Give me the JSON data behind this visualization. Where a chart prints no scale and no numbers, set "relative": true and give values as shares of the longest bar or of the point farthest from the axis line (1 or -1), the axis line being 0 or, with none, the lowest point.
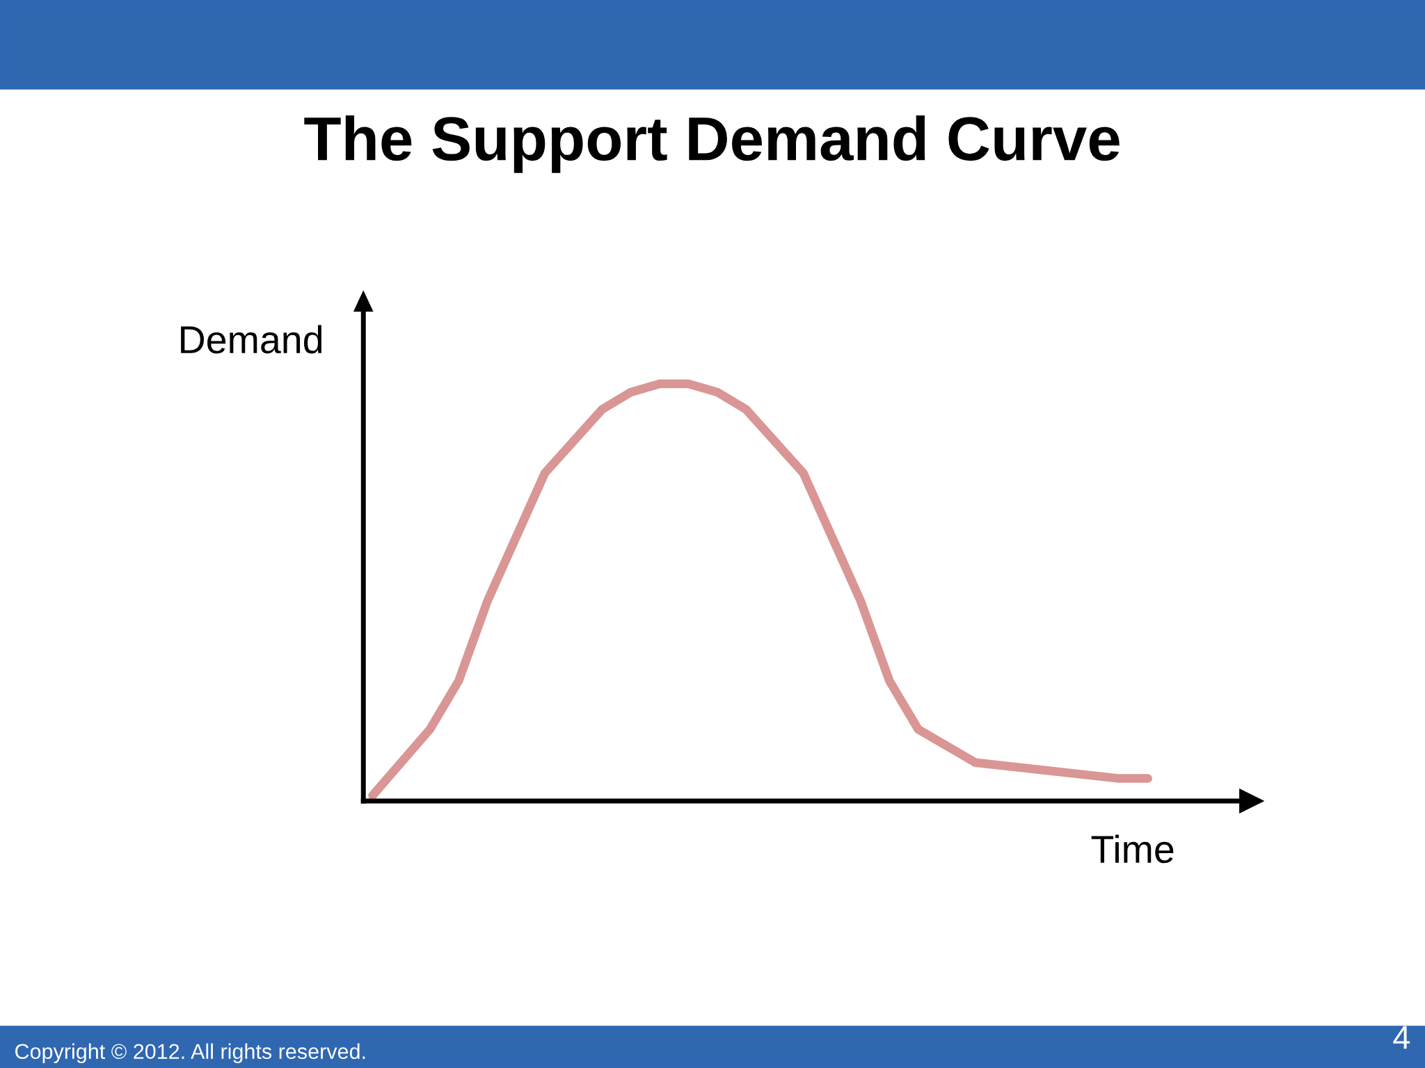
{
  "chart_data": {
    "type": "line",
    "title": "The Support Demand Curve",
    "xlabel": "Time",
    "ylabel": "Demand",
    "relative": true,
    "categories": [
      null,
      null,
      null,
      null,
      null,
      null,
      null,
      null,
      null,
      null,
      null,
      null,
      null,
      null,
      null,
      null,
      null,
      null,
      null,
      null,
      null,
      null,
      null,
      null,
      null,
      null,
      null,
      null
    ],
    "series": [
      {
        "color": "#d99694",
        "values": [
          0.013,
          null,
          0.172,
          0.288,
          0.479,
          null,
          0.786,
          null,
          0.939,
          0.98,
          1,
          1,
          0.98,
          0.939,
          null,
          0.786,
          null,
          0.479,
          0.288,
          0.172,
          null,
          0.092,
          null,
          null,
          null,
          null,
          0.054,
          0.054
        ]
      }
    ],
    "line_style": "solid",
    "annotations": [
      "Copyright © 2012. All rights reserved.",
      "4"
    ]
  }
}
